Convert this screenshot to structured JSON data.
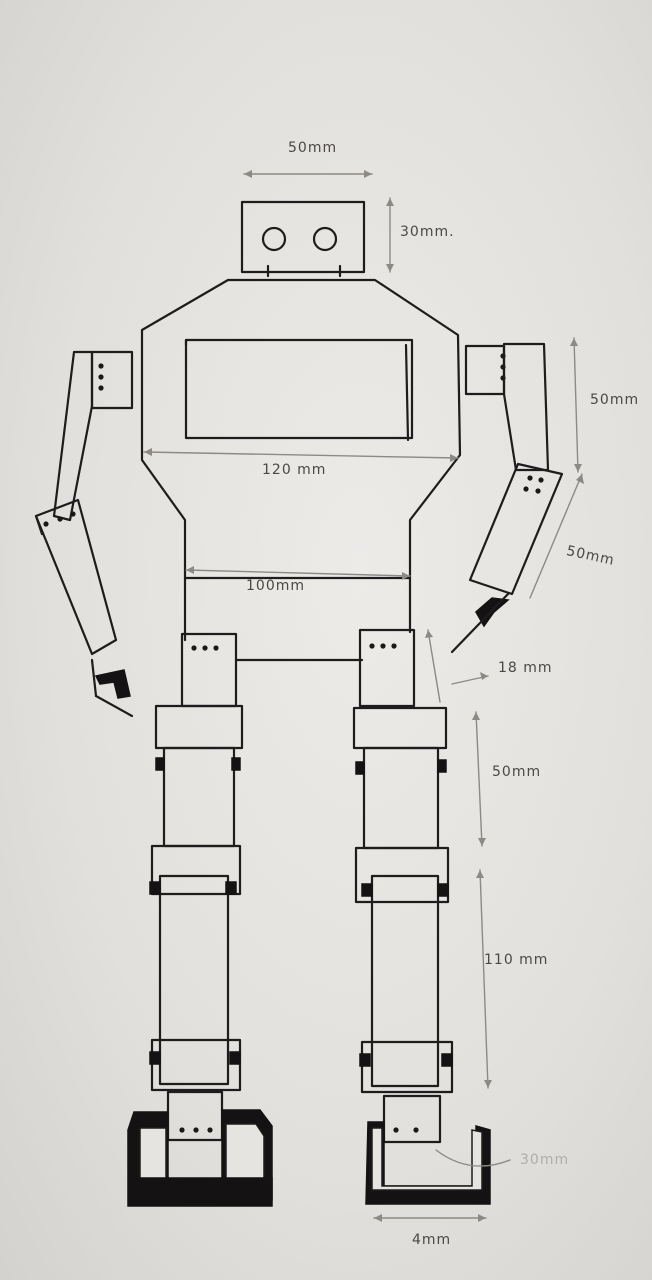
{
  "dimensions": {
    "head_width": "50mm",
    "head_height": "30mm.",
    "upper_arm": "50mm",
    "forearm": "50mm",
    "chest_width": "120 mm",
    "waist_width": "100mm",
    "hip": "18 mm",
    "thigh": "50mm",
    "shin": "110 mm",
    "ankle": "30mm",
    "foot": "4mm"
  },
  "colors": {
    "ink": "#1e1c1c",
    "pencil": "#8d8a86",
    "paper": "#e6e4e0"
  }
}
